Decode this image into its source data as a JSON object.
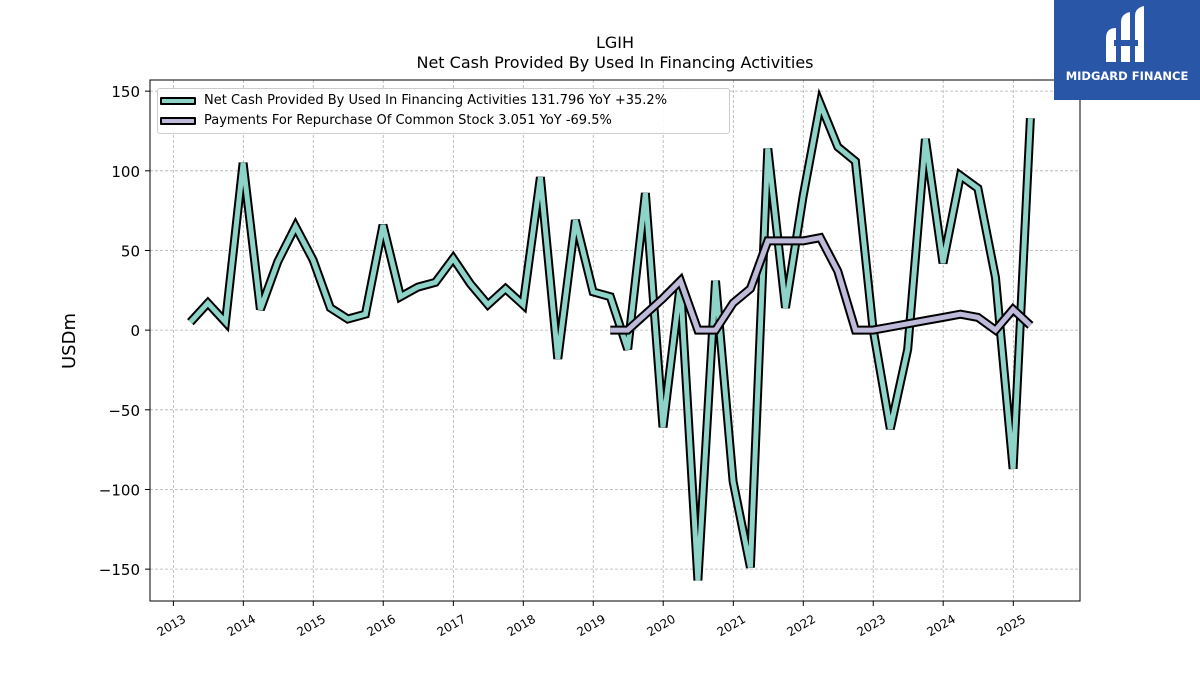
{
  "brand": {
    "name": "MIDGARD FINANCE",
    "bg_color": "#2a56a8"
  },
  "chart_data": {
    "type": "line",
    "title": "LGIH",
    "subtitle": "Net Cash Provided By Used In Financing Activities",
    "ylabel": "USDm",
    "xlabel": "",
    "ylim": [
      -170,
      157
    ],
    "xlim": [
      "2012-09-01",
      "2025-12-15"
    ],
    "yticks": [
      150,
      100,
      50,
      0,
      -50,
      -100,
      -150
    ],
    "ytick_labels": [
      "150",
      "100",
      "50",
      "0",
      "−50",
      "−100",
      "−150"
    ],
    "xticks": [
      "2013-01-01",
      "2014-01-01",
      "2015-01-01",
      "2016-01-01",
      "2017-01-01",
      "2018-01-01",
      "2019-01-01",
      "2020-01-01",
      "2021-01-01",
      "2022-01-01",
      "2023-01-01",
      "2024-01-01",
      "2025-01-01"
    ],
    "xtick_labels": [
      "2013",
      "2014",
      "2015",
      "2016",
      "2017",
      "2018",
      "2019",
      "2020",
      "2021",
      "2022",
      "2023",
      "2024",
      "2025"
    ],
    "grid": true,
    "legend_position": "top-left",
    "series": [
      {
        "name": "Net Cash Provided By Used In Financing Activities",
        "legend_label": "Net Cash Provided By Used In Financing Activities  131.796 YoY +35.2%",
        "color": "#8dd3c7",
        "x": [
          "2013-03-31",
          "2013-06-30",
          "2013-09-30",
          "2013-12-31",
          "2014-03-31",
          "2014-06-30",
          "2014-09-30",
          "2014-12-31",
          "2015-03-31",
          "2015-06-30",
          "2015-09-30",
          "2015-12-31",
          "2016-03-31",
          "2016-06-30",
          "2016-09-30",
          "2016-12-31",
          "2017-03-31",
          "2017-06-30",
          "2017-09-30",
          "2017-12-31",
          "2018-03-31",
          "2018-06-30",
          "2018-09-30",
          "2018-12-31",
          "2019-03-31",
          "2019-06-30",
          "2019-09-30",
          "2019-12-31",
          "2020-03-31",
          "2020-06-30",
          "2020-09-30",
          "2020-12-31",
          "2021-03-31",
          "2021-06-30",
          "2021-09-30",
          "2021-12-31",
          "2022-03-31",
          "2022-06-30",
          "2022-09-30",
          "2022-12-31",
          "2023-03-31",
          "2023-06-30",
          "2023-09-30",
          "2023-12-31",
          "2024-03-31",
          "2024-06-30",
          "2024-09-30",
          "2024-12-31",
          "2025-03-31"
        ],
        "values": [
          5,
          17,
          5,
          105,
          13,
          43,
          65,
          44,
          14,
          7,
          10,
          66,
          21,
          27,
          30,
          45,
          29,
          16,
          26,
          16,
          96,
          -18,
          69,
          24,
          21,
          -12,
          86,
          -61,
          29,
          -157,
          31,
          -95,
          -149,
          114,
          14,
          84,
          142,
          115,
          106,
          1,
          -62,
          -12,
          120,
          42,
          97,
          89,
          33,
          -87,
          133
        ]
      },
      {
        "name": "Payments For Repurchase Of Common Stock",
        "legend_label": "Payments For Repurchase Of Common Stock  3.051 YoY -69.5%",
        "color": "#bebada",
        "x": [
          "2019-03-31",
          "2019-06-30",
          "2019-09-30",
          "2019-12-31",
          "2020-03-31",
          "2020-06-30",
          "2020-09-30",
          "2020-12-31",
          "2021-03-31",
          "2021-06-30",
          "2021-09-30",
          "2021-12-31",
          "2022-03-31",
          "2022-06-30",
          "2022-09-30",
          "2022-12-31",
          "2023-03-31",
          "2023-06-30",
          "2023-09-30",
          "2023-12-31",
          "2024-03-31",
          "2024-06-30",
          "2024-09-30",
          "2024-12-31",
          "2025-03-31"
        ],
        "values": [
          0,
          0,
          10,
          20,
          31,
          0,
          0,
          17,
          26,
          56,
          56,
          56,
          58,
          37,
          0,
          0,
          2,
          4,
          6,
          8,
          10,
          8,
          0,
          13,
          3
        ]
      }
    ]
  }
}
